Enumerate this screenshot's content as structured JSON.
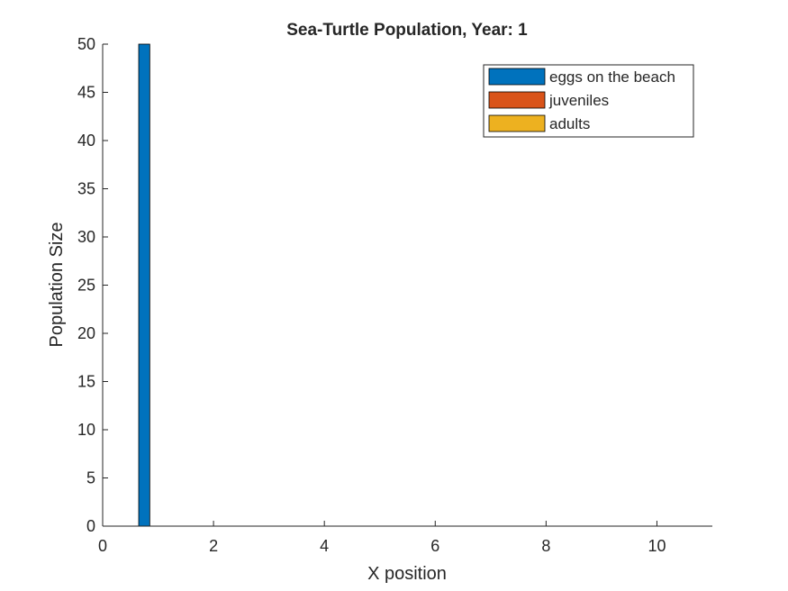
{
  "chart_data": {
    "type": "bar",
    "title": "Sea-Turtle Population, Year: 1",
    "xlabel": "X position",
    "ylabel": "Population Size",
    "xlim": [
      0,
      11
    ],
    "ylim": [
      0,
      50
    ],
    "xticks": [
      0,
      2,
      4,
      6,
      8,
      10
    ],
    "yticks": [
      0,
      5,
      10,
      15,
      20,
      25,
      30,
      35,
      40,
      45,
      50
    ],
    "grid": false,
    "legend_position": "top-right",
    "bar_width": 0.2,
    "x": [
      0.75,
      1.25,
      1.75,
      2.25,
      2.75,
      3.25,
      3.75,
      4.25,
      4.75,
      5.25,
      5.75,
      6.25,
      6.75,
      7.25,
      7.75,
      8.25,
      8.75,
      9.25,
      9.75,
      10.25
    ],
    "series": [
      {
        "name": "eggs on the beach",
        "color": "#0072BD",
        "values": [
          50,
          0,
          0,
          0,
          0,
          0,
          0,
          0,
          0,
          0,
          0,
          0,
          0,
          0,
          0,
          0,
          0,
          0,
          0,
          0
        ]
      },
      {
        "name": "juveniles",
        "color": "#D95319",
        "values": [
          0,
          0,
          0,
          0,
          0,
          0,
          0,
          0,
          0,
          0,
          0,
          0,
          0,
          0,
          0,
          0,
          0,
          0,
          0,
          0
        ]
      },
      {
        "name": "adults",
        "color": "#EDB120",
        "values": [
          0,
          0,
          0,
          0,
          0,
          0,
          0,
          0,
          0,
          0,
          0,
          0,
          0,
          0,
          0,
          0,
          0,
          0,
          0,
          0
        ]
      }
    ]
  }
}
